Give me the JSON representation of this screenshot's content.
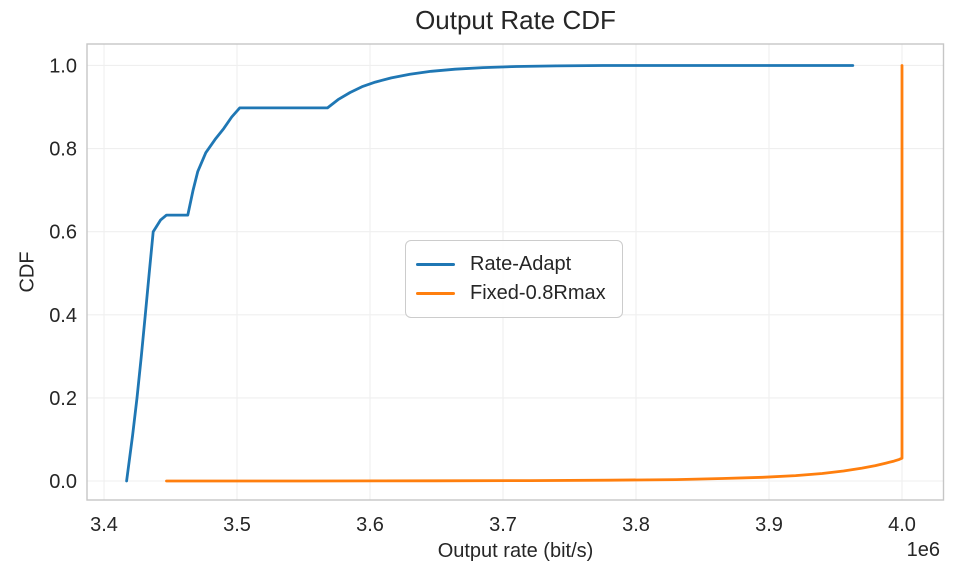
{
  "chart": {
    "title": "Output Rate CDF",
    "xlabel": "Output rate (bit/s)",
    "ylabel": "CDF",
    "offset_text": "1e6"
  },
  "colors": {
    "background": "#ffffff",
    "text": "#262626",
    "grid": "#efefef",
    "spine": "#c6c6c6",
    "series_blue": "#1f77b4",
    "series_orange": "#ff7f0e"
  },
  "chart_data": {
    "type": "line",
    "title": "Output Rate CDF",
    "xlabel": "Output rate (bit/s)",
    "ylabel": "CDF",
    "x_offset_text": "1e6",
    "x_units": "bit/s, values in multiples of 1e6",
    "grid": true,
    "legend_position": "center",
    "xlim": [
      3.3872,
      4.0312
    ],
    "ylim": [
      -0.0457,
      1.0517
    ],
    "x_ticks": {
      "values": [
        3.4,
        3.5,
        3.6,
        3.7,
        3.8,
        3.9,
        4.0
      ],
      "labels": [
        "3.4",
        "3.5",
        "3.6",
        "3.7",
        "3.8",
        "3.9",
        "4.0"
      ]
    },
    "y_ticks": {
      "values": [
        0.0,
        0.2,
        0.4,
        0.6,
        0.8,
        1.0
      ],
      "labels": [
        "0.0",
        "0.2",
        "0.4",
        "0.6",
        "0.8",
        "1.0"
      ]
    },
    "series": [
      {
        "name": "Rate-Adapt",
        "color": "#1f77b4",
        "x": [
          3.417,
          3.4215,
          3.4248,
          3.428,
          3.431,
          3.434,
          3.437,
          3.4425,
          3.447,
          3.463,
          3.467,
          3.4705,
          3.4765,
          3.4835,
          3.49,
          3.496,
          3.502,
          3.568,
          3.576,
          3.585,
          3.594,
          3.604,
          3.616,
          3.63,
          3.646,
          3.664,
          3.685,
          3.71,
          3.74,
          3.775,
          3.963
        ],
        "y": [
          0.0,
          0.11,
          0.2,
          0.3,
          0.4,
          0.5,
          0.6,
          0.628,
          0.64,
          0.64,
          0.7,
          0.745,
          0.79,
          0.822,
          0.848,
          0.876,
          0.898,
          0.898,
          0.918,
          0.935,
          0.949,
          0.96,
          0.97,
          0.979,
          0.986,
          0.991,
          0.995,
          0.9975,
          0.999,
          1.0,
          1.0
        ]
      },
      {
        "name": "Fixed-0.8Rmax",
        "color": "#ff7f0e",
        "x": [
          3.447,
          3.55,
          3.65,
          3.72,
          3.78,
          3.83,
          3.865,
          3.895,
          3.92,
          3.94,
          3.956,
          3.97,
          3.98,
          3.988,
          3.994,
          3.998,
          4.0,
          4.0
        ],
        "y": [
          0.0,
          0.0,
          0.0005,
          0.001,
          0.002,
          0.0035,
          0.006,
          0.009,
          0.013,
          0.018,
          0.024,
          0.031,
          0.037,
          0.043,
          0.048,
          0.052,
          0.055,
          1.0
        ]
      }
    ]
  }
}
